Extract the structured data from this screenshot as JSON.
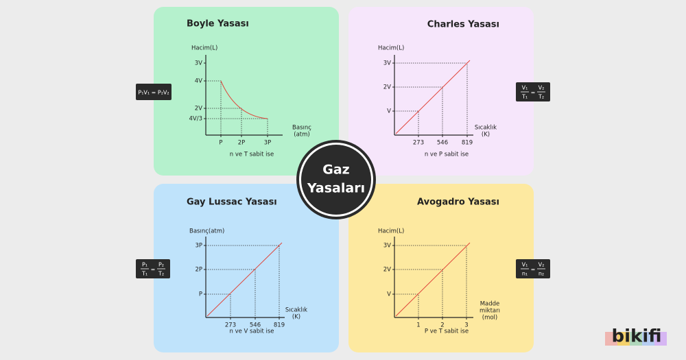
{
  "center": {
    "lines": [
      "Gaz",
      "Yasaları"
    ]
  },
  "panels": [
    {
      "title": "Boyle Yasası",
      "y_axis_label": "Hacim(L)",
      "x_axis_label": [
        "Basınç",
        "(atm)"
      ],
      "yticks": [
        "3V",
        "4V",
        "2V",
        "4V/3"
      ],
      "xticks": [
        "P",
        "2P",
        "3P"
      ],
      "condition": "n ve T sabit ise",
      "formula": {
        "text": "P₁V₁ = P₂V₂"
      }
    },
    {
      "title": "Charles Yasası",
      "y_axis_label": "Hacim(L)",
      "x_axis_label": [
        "Sıcaklık",
        "(K)"
      ],
      "yticks": [
        "3V",
        "2V",
        "V"
      ],
      "xticks": [
        "273",
        "546",
        "819"
      ],
      "condition": "n ve P sabit ise",
      "formula": {
        "left_numerator": "V₁",
        "left_denominator": "T₁",
        "equals": "=",
        "right_numerator": "V₂",
        "right_denominator": "T₂"
      }
    },
    {
      "title": "Gay Lussac Yasası",
      "y_axis_label": "Basınç(atm)",
      "x_axis_label": [
        "Sıcaklık",
        "(K)"
      ],
      "yticks": [
        "3P",
        "2P",
        "P"
      ],
      "xticks": [
        "273",
        "546",
        "819"
      ],
      "condition": "n ve V sabit ise",
      "formula": {
        "left_numerator": "P₁",
        "left_denominator": "T₁",
        "equals": "=",
        "right_numerator": "P₂",
        "right_denominator": "T₂"
      }
    },
    {
      "title": "Avogadro Yasası",
      "y_axis_label": "Hacim(L)",
      "x_axis_label": [
        "Madde",
        "miktarı",
        "(mol)"
      ],
      "yticks": [
        "3V",
        "2V",
        "V"
      ],
      "xticks": [
        "1",
        "2",
        "3"
      ],
      "condition": "P ve T sabit ise",
      "formula": {
        "left_numerator": "V₁",
        "left_denominator": "n₁",
        "equals": "=",
        "right_numerator": "V₂",
        "right_denominator": "n₂"
      }
    }
  ],
  "logo": "bikifi"
}
